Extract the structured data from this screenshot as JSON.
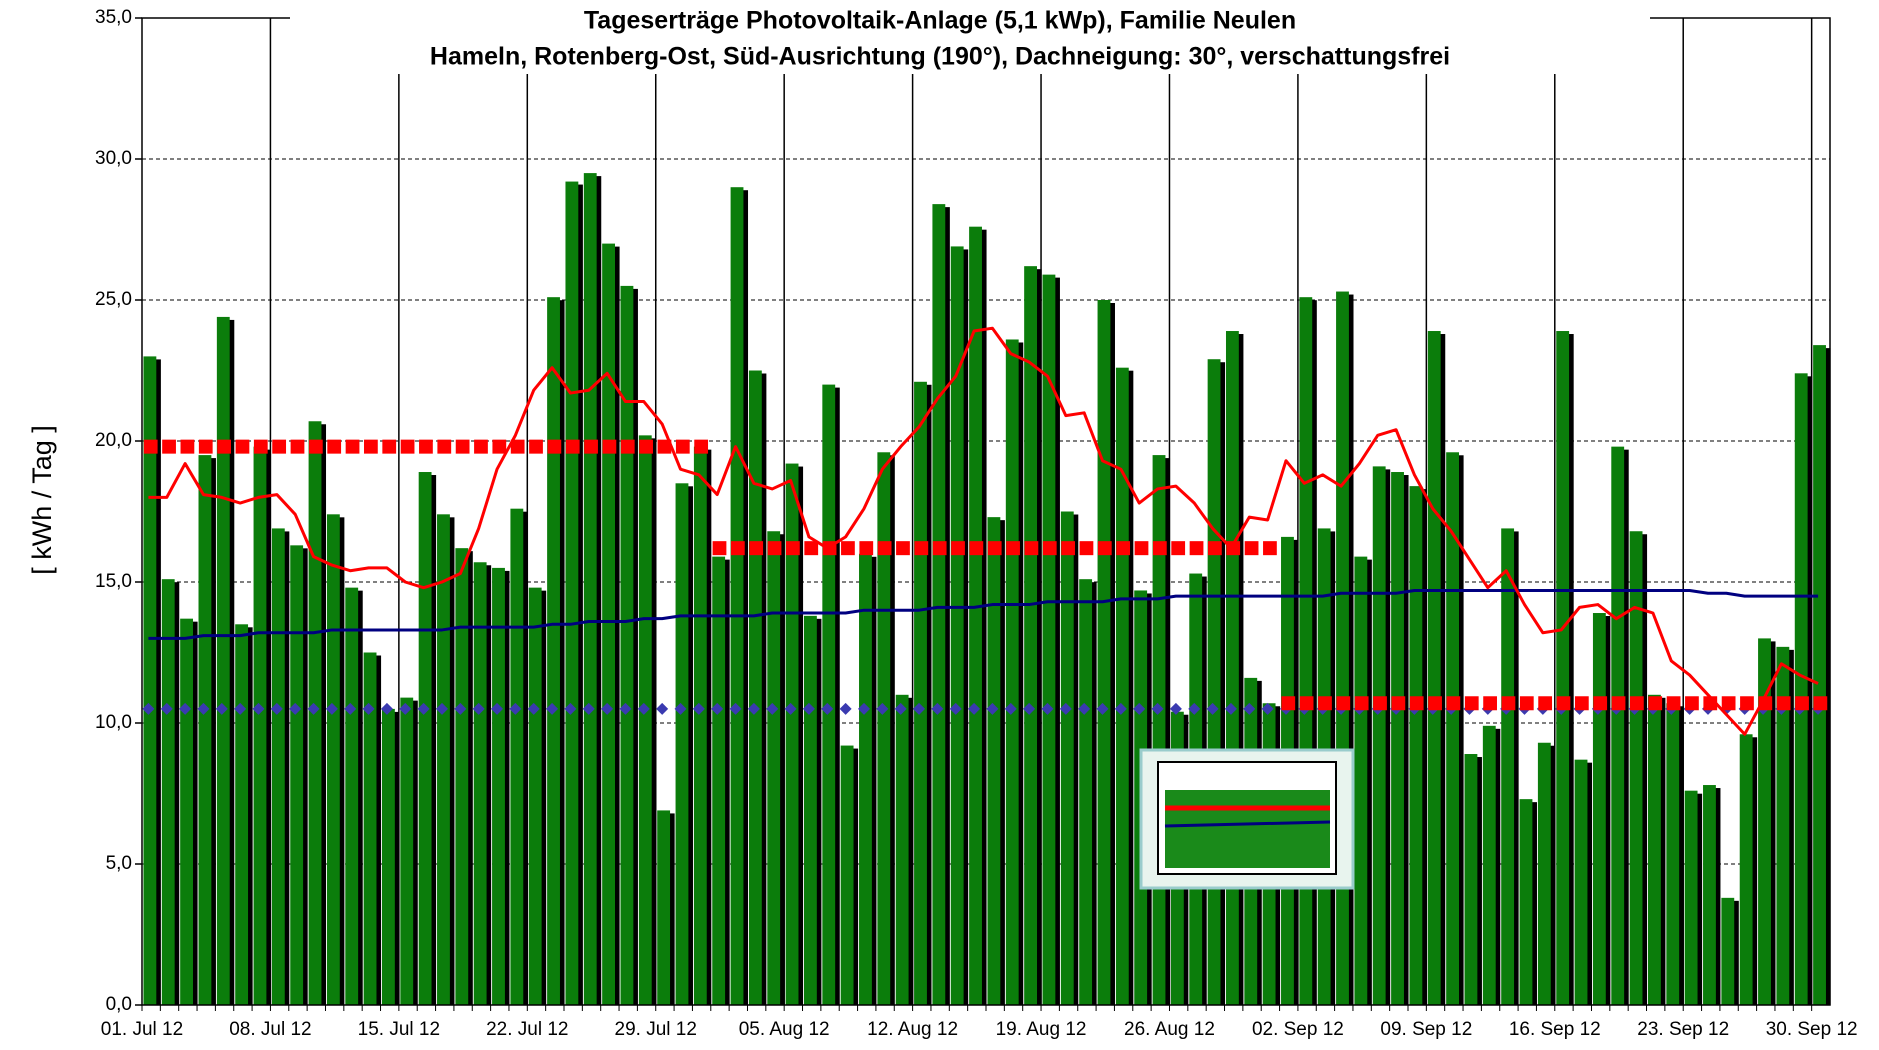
{
  "chart_data": {
    "type": "bar",
    "title": "Tageserträge Photovoltaik-Anlage (5,1 kWp),  Familie Neulen",
    "subtitle": "Hameln, Rotenberg-Ost, Süd-Ausrichtung (190°), Dachneigung: 30°, verschattungsfrei",
    "y_label": "[ kWh / Tag ]",
    "ylim": [
      0,
      35
    ],
    "yticks": [
      {
        "value": 0,
        "label": "0,0"
      },
      {
        "value": 5,
        "label": "5,0"
      },
      {
        "value": 10,
        "label": "10,0"
      },
      {
        "value": 15,
        "label": "15,0"
      },
      {
        "value": 20,
        "label": "20,0"
      },
      {
        "value": 25,
        "label": "25,0"
      },
      {
        "value": 30,
        "label": "30,0"
      },
      {
        "value": 35,
        "label": "35,0"
      }
    ],
    "grid": true,
    "categories": [
      "01. Jul 12",
      null,
      null,
      null,
      null,
      null,
      null,
      "08. Jul 12",
      null,
      null,
      null,
      null,
      null,
      null,
      "15. Jul 12",
      null,
      null,
      null,
      null,
      null,
      null,
      "22. Jul 12",
      null,
      null,
      null,
      null,
      null,
      null,
      "29. Jul 12",
      null,
      null,
      null,
      null,
      null,
      null,
      "05. Aug 12",
      null,
      null,
      null,
      null,
      null,
      null,
      "12. Aug 12",
      null,
      null,
      null,
      null,
      null,
      null,
      "19. Aug 12",
      null,
      null,
      null,
      null,
      null,
      null,
      "26. Aug 12",
      null,
      null,
      null,
      null,
      null,
      null,
      "02. Sep 12",
      null,
      null,
      null,
      null,
      null,
      null,
      "09. Sep 12",
      null,
      null,
      null,
      null,
      null,
      null,
      "16. Sep 12",
      null,
      null,
      null,
      null,
      null,
      null,
      "23. Sep 12",
      null,
      null,
      null,
      null,
      null,
      null,
      "30. Sep 12"
    ],
    "series": [
      {
        "type": "bar",
        "color": "#0b7d0b",
        "values": [
          23.0,
          15.1,
          13.7,
          19.5,
          24.4,
          13.5,
          19.8,
          16.9,
          16.3,
          20.7,
          17.4,
          14.8,
          12.5,
          10.5,
          10.9,
          18.9,
          17.4,
          16.2,
          15.7,
          15.5,
          17.6,
          14.8,
          25.1,
          29.2,
          29.5,
          27.0,
          25.5,
          20.2,
          6.9,
          18.5,
          19.8,
          15.9,
          29.0,
          22.5,
          16.8,
          19.2,
          13.8,
          22.0,
          9.2,
          16.0,
          19.6,
          11.0,
          22.1,
          28.4,
          26.9,
          27.6,
          17.3,
          23.6,
          26.2,
          25.9,
          17.5,
          15.1,
          25.0,
          22.6,
          14.7,
          19.5,
          10.4,
          15.3,
          22.9,
          23.9,
          11.6,
          10.7,
          16.6,
          25.1,
          16.9,
          25.3,
          15.9,
          19.1,
          18.9,
          18.4,
          23.9,
          19.6,
          8.9,
          9.9,
          16.9,
          7.3,
          9.3,
          23.9,
          8.7,
          13.9,
          19.8,
          16.8,
          11.0,
          10.7,
          7.6,
          7.8,
          3.8,
          9.6,
          13.0,
          12.7,
          22.4,
          23.4
        ]
      },
      {
        "type": "diamond",
        "color": "#3a3ab0",
        "values": [
          10.5,
          10.5,
          10.5,
          10.5,
          10.5,
          10.5,
          10.5,
          10.5,
          10.5,
          10.5,
          10.5,
          10.5,
          10.5,
          10.5,
          10.5,
          10.5,
          10.5,
          10.5,
          10.5,
          10.5,
          10.5,
          10.5,
          10.5,
          10.5,
          10.5,
          10.5,
          10.5,
          10.5,
          10.5,
          10.5,
          10.5,
          10.5,
          10.5,
          10.5,
          10.5,
          10.5,
          10.5,
          10.5,
          10.5,
          10.5,
          10.5,
          10.5,
          10.5,
          10.5,
          10.5,
          10.5,
          10.5,
          10.5,
          10.5,
          10.5,
          10.5,
          10.5,
          10.5,
          10.5,
          10.5,
          10.5,
          10.5,
          10.5,
          10.5,
          10.5,
          10.5,
          10.5,
          10.5,
          10.5,
          10.5,
          10.5,
          10.5,
          10.5,
          10.5,
          10.5,
          10.5,
          10.5,
          10.5,
          10.5,
          10.5,
          10.5,
          10.5,
          10.5,
          10.5,
          10.5,
          10.5,
          10.5,
          10.5,
          10.5,
          10.5,
          10.5,
          10.5,
          10.5,
          10.5,
          10.5,
          10.5,
          10.5
        ]
      },
      {
        "type": "square",
        "color": "#ff0000",
        "values": [
          19.8,
          19.8,
          19.8,
          19.8,
          19.8,
          19.8,
          19.8,
          19.8,
          19.8,
          19.8,
          19.8,
          19.8,
          19.8,
          19.8,
          19.8,
          19.8,
          19.8,
          19.8,
          19.8,
          19.8,
          19.8,
          19.8,
          19.8,
          19.8,
          19.8,
          19.8,
          19.8,
          19.8,
          19.8,
          19.8,
          19.8,
          16.2,
          16.2,
          16.2,
          16.2,
          16.2,
          16.2,
          16.2,
          16.2,
          16.2,
          16.2,
          16.2,
          16.2,
          16.2,
          16.2,
          16.2,
          16.2,
          16.2,
          16.2,
          16.2,
          16.2,
          16.2,
          16.2,
          16.2,
          16.2,
          16.2,
          16.2,
          16.2,
          16.2,
          16.2,
          16.2,
          16.2,
          10.7,
          10.7,
          10.7,
          10.7,
          10.7,
          10.7,
          10.7,
          10.7,
          10.7,
          10.7,
          10.7,
          10.7,
          10.7,
          10.7,
          10.7,
          10.7,
          10.7,
          10.7,
          10.7,
          10.7,
          10.7,
          10.7,
          10.7,
          10.7,
          10.7,
          10.7,
          10.7,
          10.7,
          10.7,
          10.7
        ]
      },
      {
        "type": "line",
        "color": "#000080",
        "values": [
          13.0,
          13.0,
          13.0,
          13.1,
          13.1,
          13.1,
          13.2,
          13.2,
          13.2,
          13.2,
          13.3,
          13.3,
          13.3,
          13.3,
          13.3,
          13.3,
          13.3,
          13.4,
          13.4,
          13.4,
          13.4,
          13.4,
          13.5,
          13.5,
          13.6,
          13.6,
          13.6,
          13.7,
          13.7,
          13.8,
          13.8,
          13.8,
          13.8,
          13.8,
          13.9,
          13.9,
          13.9,
          13.9,
          13.9,
          14.0,
          14.0,
          14.0,
          14.0,
          14.1,
          14.1,
          14.1,
          14.2,
          14.2,
          14.2,
          14.3,
          14.3,
          14.3,
          14.3,
          14.4,
          14.4,
          14.4,
          14.5,
          14.5,
          14.5,
          14.5,
          14.5,
          14.5,
          14.5,
          14.5,
          14.5,
          14.6,
          14.6,
          14.6,
          14.6,
          14.7,
          14.7,
          14.7,
          14.7,
          14.7,
          14.7,
          14.7,
          14.7,
          14.7,
          14.7,
          14.7,
          14.7,
          14.7,
          14.7,
          14.7,
          14.7,
          14.6,
          14.6,
          14.5,
          14.5,
          14.5,
          14.5,
          14.5
        ]
      },
      {
        "type": "line",
        "color": "#ff0000",
        "values": [
          18.0,
          18.0,
          19.2,
          18.1,
          18.0,
          17.8,
          18.0,
          18.1,
          17.4,
          15.9,
          15.6,
          15.4,
          15.5,
          15.5,
          15.0,
          14.8,
          15.0,
          15.3,
          16.9,
          19.0,
          20.2,
          21.8,
          22.6,
          21.7,
          21.8,
          22.4,
          21.4,
          21.4,
          20.6,
          19.0,
          18.8,
          18.1,
          19.8,
          18.5,
          18.3,
          18.6,
          16.6,
          16.2,
          16.6,
          17.6,
          19.0,
          19.8,
          20.5,
          21.5,
          22.3,
          23.9,
          24.0,
          23.1,
          22.8,
          22.3,
          20.9,
          21.0,
          19.3,
          19.0,
          17.8,
          18.3,
          18.4,
          17.8,
          16.9,
          16.2,
          17.3,
          17.2,
          19.3,
          18.5,
          18.8,
          18.4,
          19.2,
          20.2,
          20.4,
          18.8,
          17.6,
          16.8,
          15.8,
          14.8,
          15.4,
          14.2,
          13.2,
          13.3,
          14.1,
          14.2,
          13.7,
          14.1,
          13.9,
          12.2,
          11.7,
          11.0,
          10.3,
          9.6,
          10.8,
          12.1,
          11.7,
          11.4
        ]
      }
    ]
  }
}
